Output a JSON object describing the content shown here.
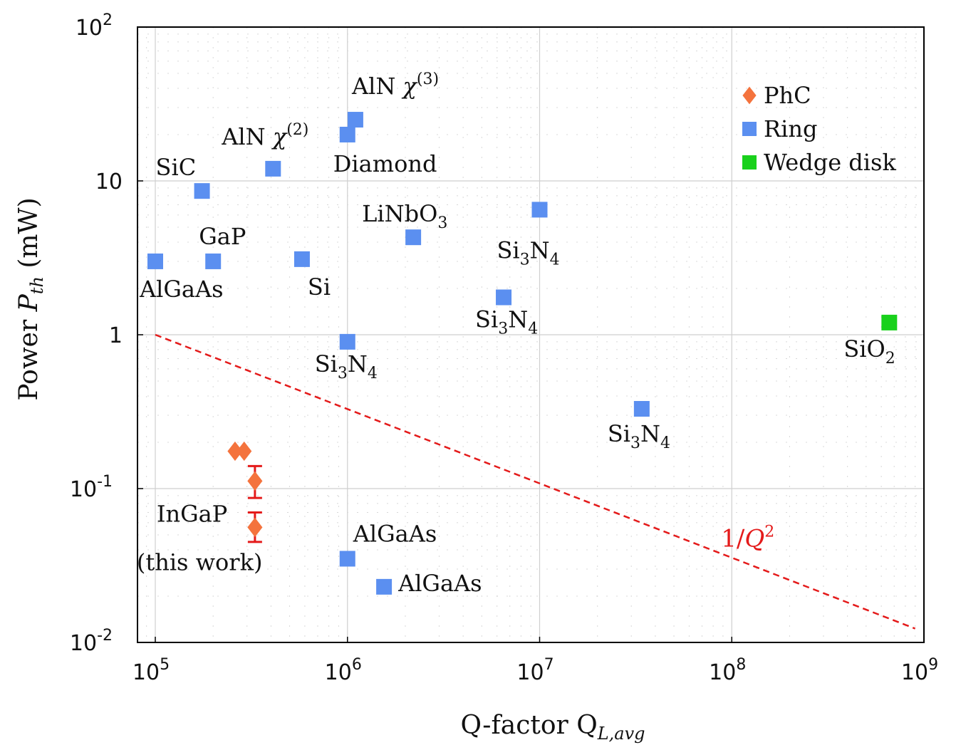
{
  "chart_data": {
    "type": "scatter",
    "xlabel": "Q-factor Q_{L,avg}",
    "xlabel_main": "Q-factor Q",
    "xlabel_sub": "L,avg",
    "ylabel": "Power P_{th} (mW)",
    "ylabel_main": "Power ",
    "ylabel_var": "P",
    "ylabel_sub": "th",
    "ylabel_unit": " (mW)",
    "x_scale": "log",
    "y_scale": "log",
    "xlim": [
      80000,
      1000000000
    ],
    "ylim": [
      0.01,
      100
    ],
    "grid": true,
    "legend_position": "top-right",
    "x_ticks": [
      {
        "value": 100000,
        "base": "10",
        "exp": "5"
      },
      {
        "value": 1000000,
        "base": "10",
        "exp": "6"
      },
      {
        "value": 10000000,
        "base": "10",
        "exp": "7"
      },
      {
        "value": 100000000,
        "base": "10",
        "exp": "8"
      },
      {
        "value": 1000000000,
        "base": "10",
        "exp": "9"
      }
    ],
    "y_ticks": [
      {
        "value": 0.01,
        "base": "10",
        "exp": "-2"
      },
      {
        "value": 0.1,
        "base": "10",
        "exp": "-1"
      },
      {
        "value": 1,
        "base": "1",
        "exp": ""
      },
      {
        "value": 10,
        "base": "10",
        "exp": ""
      },
      {
        "value": 100,
        "base": "10",
        "exp": "2"
      }
    ],
    "legend": [
      {
        "name": "PhC",
        "marker": "diamond",
        "color": "#f4733d"
      },
      {
        "name": "Ring",
        "marker": "square",
        "color": "#5b8ff0"
      },
      {
        "name": "Wedge disk",
        "marker": "square",
        "color": "#19d11c"
      }
    ],
    "series": [
      {
        "name": "PhC",
        "marker": "diamond",
        "color": "#f4733d",
        "points": [
          {
            "x": 260000,
            "y": 0.175
          },
          {
            "x": 290000,
            "y": 0.175
          },
          {
            "x": 330000,
            "y": 0.112,
            "err_low": 0.087,
            "err_high": 0.14
          },
          {
            "x": 330000,
            "y": 0.056,
            "err_low": 0.045,
            "err_high": 0.07
          }
        ]
      },
      {
        "name": "Ring",
        "marker": "square",
        "color": "#5b8ff0",
        "points": [
          {
            "x": 100000,
            "y": 3.0
          },
          {
            "x": 175000,
            "y": 8.6
          },
          {
            "x": 200000,
            "y": 3.0
          },
          {
            "x": 410000,
            "y": 12.0
          },
          {
            "x": 580000,
            "y": 3.1
          },
          {
            "x": 1000000,
            "y": 20.0
          },
          {
            "x": 1100000,
            "y": 25.0
          },
          {
            "x": 2200000,
            "y": 4.3
          },
          {
            "x": 10000000,
            "y": 6.5
          },
          {
            "x": 6500000,
            "y": 1.75
          },
          {
            "x": 1000000,
            "y": 0.9
          },
          {
            "x": 34000000,
            "y": 0.33
          },
          {
            "x": 1000000,
            "y": 0.035
          },
          {
            "x": 1550000,
            "y": 0.023
          }
        ]
      },
      {
        "name": "Wedge disk",
        "marker": "square",
        "color": "#19d11c",
        "points": [
          {
            "x": 660000000,
            "y": 1.2
          }
        ]
      }
    ],
    "reference_line": {
      "label": "1/Q",
      "label_exp": "2",
      "color": "#e41a1a",
      "style": "dashed",
      "x": [
        100000,
        900000000
      ],
      "y": [
        1,
        0.0123
      ]
    },
    "annotations": [
      {
        "segments": [
          {
            "t": "AlN  "
          },
          {
            "t": "χ",
            "i": true
          },
          {
            "t": "(3)",
            "sup": true
          }
        ],
        "x": 1110000,
        "y": 25.0,
        "dx": -6,
        "dy": -36,
        "anchor": "start"
      },
      {
        "segments": [
          {
            "t": "AlN  "
          },
          {
            "t": "χ",
            "i": true
          },
          {
            "t": "(2)",
            "sup": true
          }
        ],
        "x": 410000,
        "y": 12.0,
        "dx": -72,
        "dy": -34,
        "anchor": "start"
      },
      {
        "segments": [
          {
            "t": "Diamond"
          }
        ],
        "x": 1000000,
        "y": 20.0,
        "dx": -20,
        "dy": 52,
        "anchor": "start"
      },
      {
        "segments": [
          {
            "t": "SiC"
          }
        ],
        "x": 175000,
        "y": 8.6,
        "dx": -65,
        "dy": -22,
        "anchor": "start"
      },
      {
        "segments": [
          {
            "t": "LiNbO"
          },
          {
            "t": "3",
            "sub": true
          }
        ],
        "x": 2200000,
        "y": 4.3,
        "dx": -72,
        "dy": -22,
        "anchor": "start"
      },
      {
        "segments": [
          {
            "t": "GaP"
          }
        ],
        "x": 200000,
        "y": 3.0,
        "dx": -20,
        "dy": -24,
        "anchor": "start"
      },
      {
        "segments": [
          {
            "t": "Si"
          },
          {
            "t": "3",
            "sub": true
          },
          {
            "t": "N"
          },
          {
            "t": "4",
            "sub": true
          }
        ],
        "x": 10000000,
        "y": 6.5,
        "dx": -60,
        "dy": 68,
        "anchor": "start"
      },
      {
        "segments": [
          {
            "t": "AlGaAs"
          }
        ],
        "x": 100000,
        "y": 3.0,
        "dx": -22,
        "dy": 50,
        "anchor": "start"
      },
      {
        "segments": [
          {
            "t": "Si"
          }
        ],
        "x": 580000,
        "y": 3.1,
        "dx": 8,
        "dy": 50,
        "anchor": "start"
      },
      {
        "segments": [
          {
            "t": "Si"
          },
          {
            "t": "3",
            "sub": true
          },
          {
            "t": "N"
          },
          {
            "t": "4",
            "sub": true
          }
        ],
        "x": 6500000,
        "y": 1.75,
        "dx": -40,
        "dy": 42,
        "anchor": "start"
      },
      {
        "segments": [
          {
            "t": "Si"
          },
          {
            "t": "O"
          },
          {
            "t": "2",
            "sub": true
          }
        ],
        "x": 660000000,
        "y": 1.2,
        "dx": -64,
        "dy": 48,
        "anchor": "start"
      },
      {
        "segments": [
          {
            "t": "Si"
          },
          {
            "t": "3",
            "sub": true
          },
          {
            "t": "N"
          },
          {
            "t": "4",
            "sub": true
          }
        ],
        "x": 1000000,
        "y": 0.9,
        "dx": -46,
        "dy": 42,
        "anchor": "start"
      },
      {
        "segments": [
          {
            "t": "Si"
          },
          {
            "t": "3",
            "sub": true
          },
          {
            "t": "N"
          },
          {
            "t": "4",
            "sub": true
          }
        ],
        "x": 34000000,
        "y": 0.33,
        "dx": -48,
        "dy": 46,
        "anchor": "start"
      },
      {
        "segments": [
          {
            "t": "InGaP"
          }
        ],
        "x": 330000,
        "y": 0.056,
        "dx": -138,
        "dy": -8,
        "anchor": "start"
      },
      {
        "segments": [
          {
            "t": "(this work)"
          }
        ],
        "x": 330000,
        "y": 0.056,
        "dx": -166,
        "dy": 60,
        "anchor": "start",
        "large": true
      },
      {
        "segments": [
          {
            "t": "AlGaAs"
          }
        ],
        "x": 1000000,
        "y": 0.035,
        "dx": 8,
        "dy": -24,
        "anchor": "start"
      },
      {
        "segments": [
          {
            "t": "AlGaAs"
          }
        ],
        "x": 1550000,
        "y": 0.023,
        "dx": 20,
        "dy": 6,
        "anchor": "start"
      }
    ]
  }
}
